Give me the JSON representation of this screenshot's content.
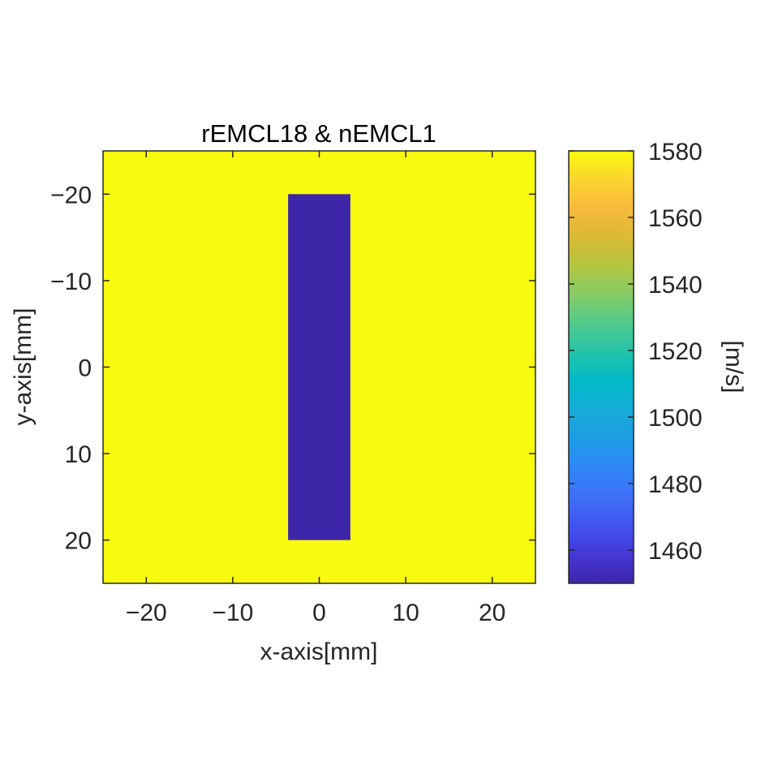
{
  "chart_data": {
    "type": "heatmap",
    "title": "rEMCL18 & nEMCL1",
    "xlabel": "x-axis[mm]",
    "ylabel": "y-axis[mm]",
    "xlim": [
      -25,
      25
    ],
    "ylim": [
      -25,
      25
    ],
    "y_reversed": true,
    "xticks": [
      -20,
      -10,
      0,
      10,
      20
    ],
    "yticks": [
      -20,
      -10,
      0,
      10,
      20
    ],
    "xtick_labels": [
      "−20",
      "−10",
      "0",
      "10",
      "20"
    ],
    "ytick_labels": [
      "−20",
      "−10",
      "0",
      "10",
      "20"
    ],
    "grid": false,
    "background": {
      "value": 1580,
      "color": "#f9fb0e"
    },
    "regions": [
      {
        "x": [
          -3.6,
          3.6
        ],
        "y": [
          -20,
          20
        ],
        "value": 1450,
        "color": "#3d26a8"
      }
    ],
    "colorbar": {
      "label": "[m/s]",
      "range": [
        1450,
        1580
      ],
      "ticks": [
        1460,
        1480,
        1500,
        1520,
        1540,
        1560,
        1580
      ],
      "tick_labels": [
        "1460",
        "1480",
        "1500",
        "1520",
        "1540",
        "1560",
        "1580"
      ],
      "colormap": "parula",
      "stops": [
        "#3e26a8",
        "#4538d7",
        "#4253f0",
        "#3f70f6",
        "#2e87f7",
        "#1e9ce4",
        "#18acd9",
        "#00bac8",
        "#23c3aa",
        "#4fcb8c",
        "#85cb67",
        "#b1c641",
        "#d9ba35",
        "#f8ba3d",
        "#fbd42e",
        "#f9fb0e"
      ]
    }
  }
}
